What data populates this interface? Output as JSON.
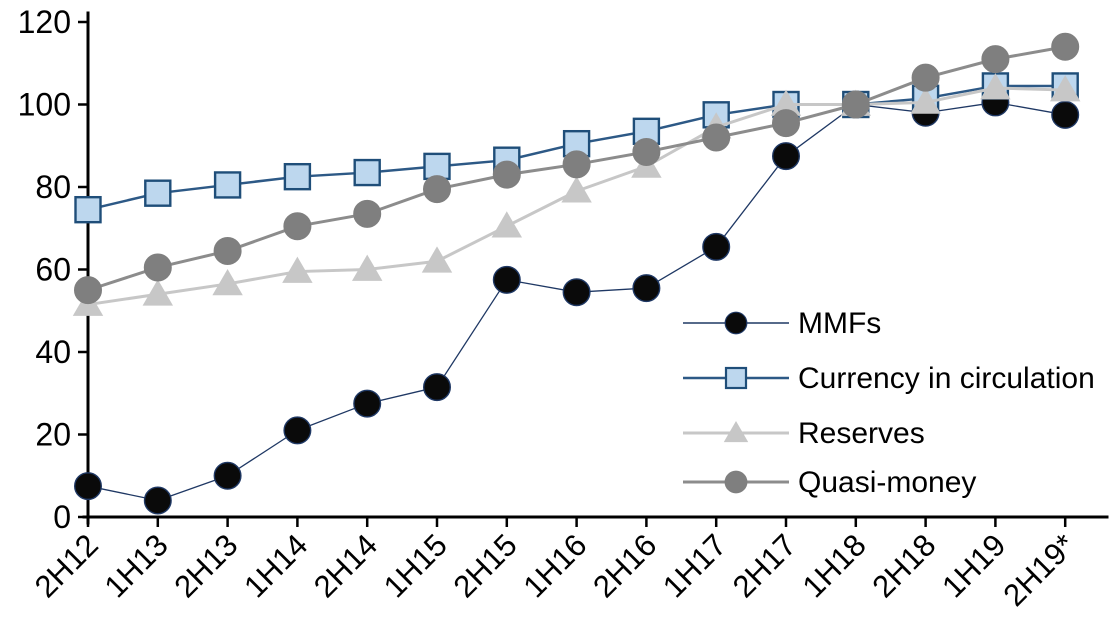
{
  "chart_data": {
    "type": "line",
    "title": "",
    "xlabel": "",
    "ylabel": "",
    "categories": [
      "2H12",
      "1H13",
      "2H13",
      "1H14",
      "2H14",
      "1H15",
      "2H15",
      "1H16",
      "2H16",
      "1H17",
      "2H17",
      "1H18",
      "2H18",
      "1H19",
      "2H19*"
    ],
    "series": [
      {
        "name": "MMFs",
        "marker": "circle",
        "line_color": "#1f3864",
        "line_width": 1.3,
        "marker_fill": "#0a0a0a",
        "marker_stroke": "#1f3864",
        "values": [
          7.5,
          4,
          10,
          21,
          27.5,
          31.5,
          57.5,
          54.5,
          55.5,
          65.5,
          87.5,
          100,
          98,
          100.5,
          97.5
        ]
      },
      {
        "name": "Currency in circulation",
        "marker": "square",
        "line_color": "#2d5986",
        "line_width": 2.5,
        "marker_fill": "#bdd7ee",
        "marker_stroke": "#1f4e79",
        "values": [
          74.5,
          78.5,
          80.5,
          82.5,
          83.5,
          85,
          86.5,
          90.5,
          93.5,
          97.5,
          100,
          100,
          101.5,
          104.5,
          104.5
        ]
      },
      {
        "name": "Reserves",
        "marker": "triangle",
        "line_color": "#c7c7c7",
        "line_width": 3,
        "marker_fill": "#c7c7c7",
        "marker_stroke": "#c7c7c7",
        "values": [
          51.5,
          54,
          56.5,
          59.5,
          60,
          62,
          70.5,
          79,
          85,
          94.5,
          100,
          100,
          100.5,
          104,
          103.5
        ]
      },
      {
        "name": "Quasi-money",
        "marker": "circle",
        "line_color": "#8c8c8c",
        "line_width": 3,
        "marker_fill": "#7f7f7f",
        "marker_stroke": "#7f7f7f",
        "values": [
          55,
          60.5,
          64.5,
          70.5,
          73.5,
          79.5,
          83,
          85.5,
          88.5,
          92,
          95.5,
          100,
          106.5,
          111,
          114
        ]
      }
    ],
    "ylim": [
      0,
      120
    ],
    "yticks": [
      0,
      20,
      40,
      60,
      80,
      100,
      120
    ],
    "grid": false,
    "legend_position": "inside-right",
    "legend_items": [
      "MMFs",
      "Currency in circulation",
      "Reserves",
      "Quasi-money"
    ],
    "axis_color": "#000000",
    "background": "#ffffff"
  }
}
